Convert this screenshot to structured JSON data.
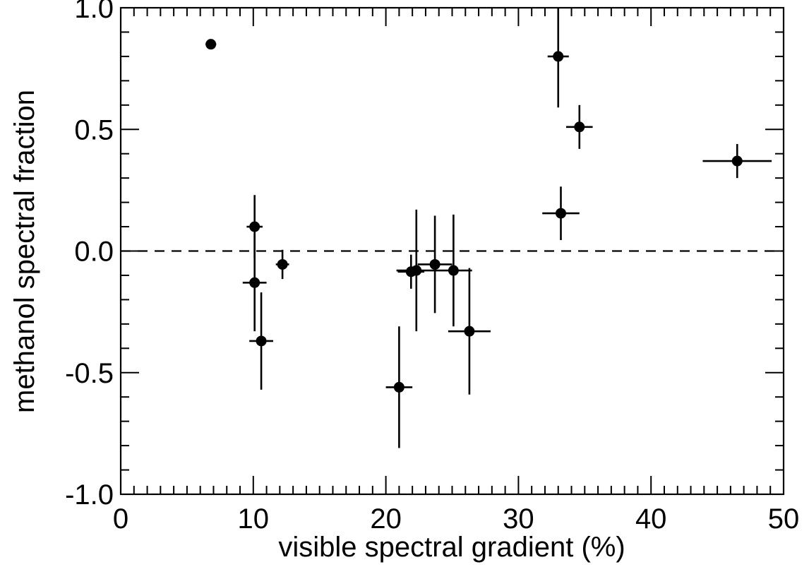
{
  "chart_data": {
    "type": "scatter",
    "title": "",
    "xlabel": "visible spectral gradient (%)",
    "ylabel": "methanol spectral fraction",
    "xlim": [
      0,
      50
    ],
    "ylim": [
      -1.0,
      1.0
    ],
    "x_ticks": [
      0,
      10,
      20,
      30,
      40,
      50
    ],
    "x_tick_labels": [
      "0",
      "10",
      "20",
      "30",
      "40",
      "50"
    ],
    "y_ticks": [
      -1.0,
      -0.5,
      0.0,
      0.5,
      1.0
    ],
    "y_tick_labels": [
      "-1.0",
      "-0.5",
      "0.0",
      "0.5",
      "1.0"
    ],
    "reference_line": {
      "y": 0.0,
      "style": "dashed"
    },
    "grid": false,
    "legend": "none",
    "points": [
      {
        "x": 6.8,
        "y": 0.85,
        "xerr": 0.4,
        "yerr": 0.0
      },
      {
        "x": 10.1,
        "y": 0.1,
        "xerr": 0.6,
        "yerr": 0.13
      },
      {
        "x": 10.1,
        "y": -0.13,
        "xerr": 0.9,
        "yerr": 0.2
      },
      {
        "x": 12.2,
        "y": -0.055,
        "xerr": 0.5,
        "yerr": 0.06
      },
      {
        "x": 10.6,
        "y": -0.37,
        "xerr": 0.9,
        "yerr": 0.2
      },
      {
        "x": 21.0,
        "y": -0.56,
        "xerr": 1.0,
        "yerr": 0.25
      },
      {
        "x": 21.9,
        "y": -0.085,
        "xerr": 1.0,
        "yerr": 0.07
      },
      {
        "x": 22.3,
        "y": -0.08,
        "xerr": 1.5,
        "yerr": 0.25
      },
      {
        "x": 23.7,
        "y": -0.055,
        "xerr": 1.3,
        "yerr": 0.2
      },
      {
        "x": 25.1,
        "y": -0.08,
        "xerr": 1.4,
        "yerr": 0.23
      },
      {
        "x": 26.3,
        "y": -0.33,
        "xerr": 1.6,
        "yerr": 0.26
      },
      {
        "x": 33.0,
        "y": 0.8,
        "xerr": 0.8,
        "yerr": 0.21
      },
      {
        "x": 33.2,
        "y": 0.155,
        "xerr": 1.4,
        "yerr": 0.11
      },
      {
        "x": 34.6,
        "y": 0.51,
        "xerr": 1.0,
        "yerr": 0.09
      },
      {
        "x": 46.5,
        "y": 0.37,
        "xerr": 2.6,
        "yerr": 0.07
      }
    ]
  }
}
